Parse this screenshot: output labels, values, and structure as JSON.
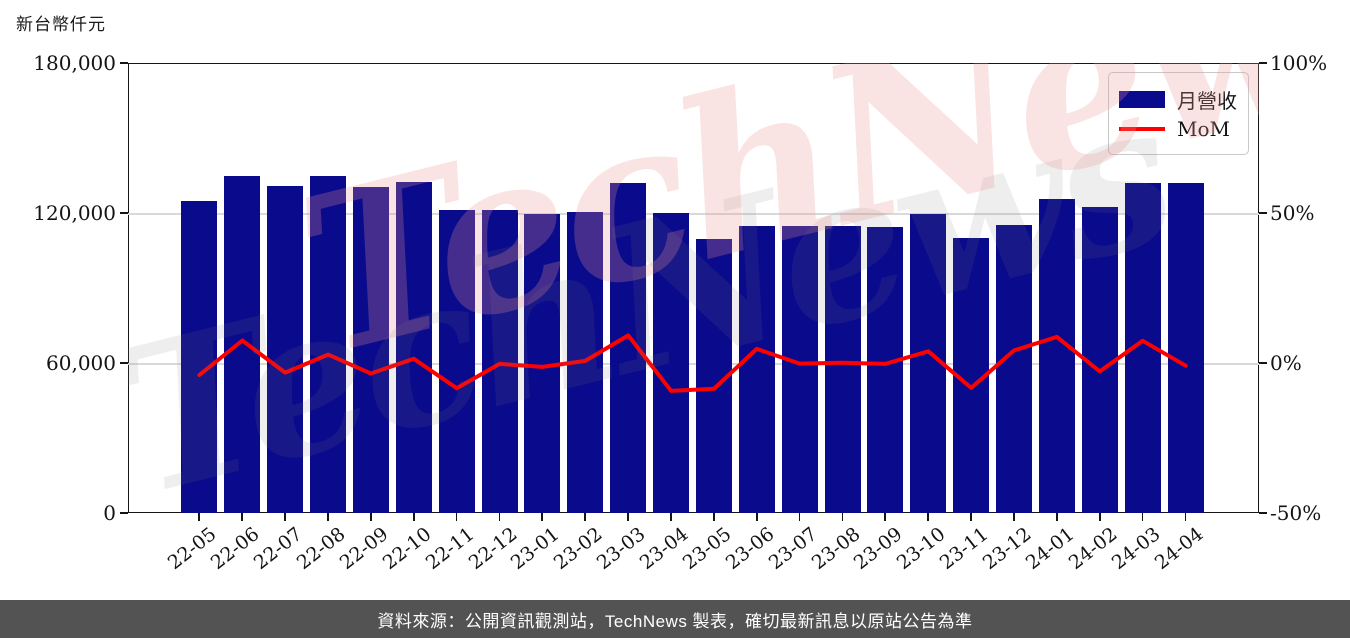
{
  "page": {
    "title": "新台幣仟元",
    "footer": "資料來源：公開資訊觀測站，TechNews 製表，確切最新訊息以原站公告為準"
  },
  "legend": {
    "bar_label": "月營收",
    "line_label": "MoM"
  },
  "watermark": {
    "text": "TechNews"
  },
  "colors": {
    "bar": "#0A0A8C",
    "line": "#FF0000",
    "grid": "#D9D9D9",
    "spine": "#141414",
    "footer_bg": "#535353",
    "watermark_pink": "rgba(235,145,145,0.26)",
    "watermark_gray": "rgba(120,120,120,0.13)"
  },
  "chart_data": {
    "type": "bar",
    "title": "新台幣仟元",
    "categories": [
      "22-05",
      "22-06",
      "22-07",
      "22-08",
      "22-09",
      "22-10",
      "22-11",
      "22-12",
      "23-01",
      "23-02",
      "23-03",
      "23-04",
      "23-05",
      "23-06",
      "23-07",
      "23-08",
      "23-09",
      "23-10",
      "23-11",
      "23-12",
      "24-01",
      "24-02",
      "24-03",
      "24-04"
    ],
    "series": [
      {
        "name": "月營收",
        "type": "bar",
        "axis": "left",
        "unit": "新台幣仟元",
        "values": [
          124700,
          134800,
          130900,
          135000,
          130400,
          132300,
          121200,
          121100,
          119600,
          120400,
          131900,
          119900,
          109600,
          114800,
          114700,
          114800,
          114400,
          119500,
          110000,
          115200,
          125600,
          122400,
          132100,
          132000
        ]
      },
      {
        "name": "MoM",
        "type": "line",
        "axis": "right",
        "unit": "%",
        "values": [
          -4.0,
          7.5,
          -3.2,
          2.8,
          -3.5,
          1.4,
          -8.4,
          -0.3,
          -1.3,
          0.7,
          9.2,
          -9.3,
          -8.6,
          4.7,
          -0.2,
          0.1,
          -0.3,
          3.9,
          -8.3,
          4.2,
          8.7,
          -2.8,
          7.4,
          -0.9
        ]
      }
    ],
    "left_axis": {
      "label": "新台幣仟元",
      "min": 0,
      "max": 180000,
      "tick_labels": [
        "180,000",
        "120,000",
        "60,000",
        "0"
      ],
      "tick_values": [
        180000,
        120000,
        60000,
        0
      ]
    },
    "right_axis": {
      "min": -50,
      "max": 100,
      "tick_labels": [
        "100%",
        "50%",
        "0%",
        "-50%"
      ],
      "tick_values": [
        100,
        50,
        0,
        -50
      ]
    },
    "grid": "horizontal",
    "legend_position": "top-right"
  }
}
